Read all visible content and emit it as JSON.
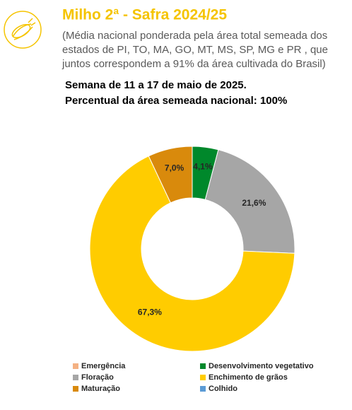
{
  "chart_data": {
    "type": "pie",
    "donut": true,
    "title": "Milho 2ª - Safra 2024/25",
    "subtitle": [
      "(Média nacional ponderada pela área total semeada dos",
      "estados de PI, TO, MA, GO, MT, MS, SP, MG e PR , que",
      "juntos correspondem a 91% da área cultivada do Brasil)"
    ],
    "notes": [
      "Semana de 11 a 17 de maio de 2025.",
      "Percentual da área semeada nacional: 100%"
    ],
    "categories": [
      "Emergência",
      "Desenvolvimento vegetativo",
      "Floração",
      "Enchimento de grãos",
      "Maturação",
      "Colhido"
    ],
    "values": [
      0,
      4.1,
      21.6,
      67.3,
      7.0,
      0
    ],
    "value_labels": [
      null,
      "4,1%",
      "21,6%",
      "67,3%",
      "7,0%",
      null
    ],
    "colors": [
      "#f4b183",
      "#00882b",
      "#a6a6a6",
      "#ffcc00",
      "#d98a0c",
      "#5b9bd5"
    ]
  }
}
